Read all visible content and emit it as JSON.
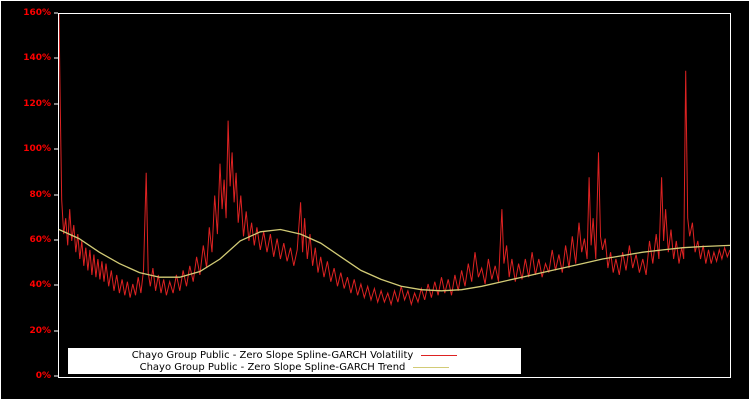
{
  "window": {
    "background": "#000000",
    "frame_color": "#ffffff"
  },
  "legend": {
    "items": [
      {
        "label": "Chayo Group Public - Zero Slope Spline-GARCH Volatility"
      },
      {
        "label": "Chayo Group Public - Zero Slope Spline-GARCH Trend"
      }
    ]
  },
  "chart_data": {
    "type": "line",
    "title": "",
    "xlabel": "",
    "ylabel": "",
    "ylim": [
      0,
      160
    ],
    "xlim": [
      0,
      1
    ],
    "grid": false,
    "legend_position": "bottom-left-inside",
    "axis_label_color": "#ff0000",
    "yticks": [
      "0%",
      "20%",
      "40%",
      "60%",
      "80%",
      "100%",
      "120%",
      "140%",
      "160%"
    ],
    "series": [
      {
        "name": "Chayo Group Public - Zero Slope Spline-GARCH Volatility",
        "color": "#dd2222",
        "width": 1,
        "points": [
          [
            0.0,
            160
          ],
          [
            0.002,
            118
          ],
          [
            0.004,
            78
          ],
          [
            0.007,
            63
          ],
          [
            0.01,
            70
          ],
          [
            0.013,
            58
          ],
          [
            0.016,
            74
          ],
          [
            0.019,
            60
          ],
          [
            0.022,
            67
          ],
          [
            0.025,
            55
          ],
          [
            0.028,
            63
          ],
          [
            0.031,
            52
          ],
          [
            0.034,
            60
          ],
          [
            0.037,
            49
          ],
          [
            0.04,
            57
          ],
          [
            0.043,
            47
          ],
          [
            0.046,
            56
          ],
          [
            0.049,
            45
          ],
          [
            0.052,
            54
          ],
          [
            0.055,
            44
          ],
          [
            0.058,
            52
          ],
          [
            0.061,
            43
          ],
          [
            0.064,
            51
          ],
          [
            0.067,
            42
          ],
          [
            0.07,
            50
          ],
          [
            0.074,
            40
          ],
          [
            0.078,
            47
          ],
          [
            0.082,
            38
          ],
          [
            0.086,
            45
          ],
          [
            0.09,
            37
          ],
          [
            0.094,
            43
          ],
          [
            0.098,
            36
          ],
          [
            0.102,
            42
          ],
          [
            0.106,
            35
          ],
          [
            0.11,
            41
          ],
          [
            0.114,
            36
          ],
          [
            0.118,
            44
          ],
          [
            0.122,
            37
          ],
          [
            0.126,
            47
          ],
          [
            0.13,
            90
          ],
          [
            0.133,
            46
          ],
          [
            0.136,
            40
          ],
          [
            0.14,
            48
          ],
          [
            0.144,
            38
          ],
          [
            0.148,
            45
          ],
          [
            0.152,
            37
          ],
          [
            0.156,
            43
          ],
          [
            0.16,
            36
          ],
          [
            0.165,
            42
          ],
          [
            0.17,
            37
          ],
          [
            0.175,
            45
          ],
          [
            0.18,
            38
          ],
          [
            0.185,
            47
          ],
          [
            0.19,
            40
          ],
          [
            0.195,
            49
          ],
          [
            0.2,
            42
          ],
          [
            0.205,
            53
          ],
          [
            0.21,
            45
          ],
          [
            0.215,
            58
          ],
          [
            0.22,
            48
          ],
          [
            0.224,
            66
          ],
          [
            0.228,
            55
          ],
          [
            0.232,
            80
          ],
          [
            0.236,
            63
          ],
          [
            0.24,
            94
          ],
          [
            0.243,
            74
          ],
          [
            0.246,
            87
          ],
          [
            0.249,
            70
          ],
          [
            0.252,
            113
          ],
          [
            0.255,
            84
          ],
          [
            0.258,
            99
          ],
          [
            0.261,
            77
          ],
          [
            0.264,
            90
          ],
          [
            0.267,
            68
          ],
          [
            0.271,
            80
          ],
          [
            0.275,
            62
          ],
          [
            0.279,
            73
          ],
          [
            0.283,
            60
          ],
          [
            0.287,
            68
          ],
          [
            0.291,
            58
          ],
          [
            0.295,
            66
          ],
          [
            0.3,
            56
          ],
          [
            0.305,
            64
          ],
          [
            0.31,
            55
          ],
          [
            0.315,
            63
          ],
          [
            0.32,
            53
          ],
          [
            0.325,
            61
          ],
          [
            0.33,
            52
          ],
          [
            0.335,
            59
          ],
          [
            0.34,
            51
          ],
          [
            0.345,
            57
          ],
          [
            0.35,
            49
          ],
          [
            0.355,
            56
          ],
          [
            0.36,
            77
          ],
          [
            0.363,
            55
          ],
          [
            0.366,
            70
          ],
          [
            0.37,
            52
          ],
          [
            0.374,
            63
          ],
          [
            0.378,
            49
          ],
          [
            0.382,
            57
          ],
          [
            0.386,
            46
          ],
          [
            0.39,
            53
          ],
          [
            0.395,
            44
          ],
          [
            0.4,
            51
          ],
          [
            0.405,
            42
          ],
          [
            0.41,
            48
          ],
          [
            0.415,
            40
          ],
          [
            0.42,
            46
          ],
          [
            0.425,
            39
          ],
          [
            0.43,
            44
          ],
          [
            0.435,
            37
          ],
          [
            0.44,
            43
          ],
          [
            0.445,
            36
          ],
          [
            0.45,
            41
          ],
          [
            0.455,
            35
          ],
          [
            0.46,
            40
          ],
          [
            0.465,
            34
          ],
          [
            0.47,
            39
          ],
          [
            0.475,
            33
          ],
          [
            0.48,
            38
          ],
          [
            0.485,
            33
          ],
          [
            0.49,
            37
          ],
          [
            0.495,
            32
          ],
          [
            0.5,
            38
          ],
          [
            0.505,
            33
          ],
          [
            0.51,
            40
          ],
          [
            0.515,
            34
          ],
          [
            0.52,
            38
          ],
          [
            0.525,
            32
          ],
          [
            0.53,
            37
          ],
          [
            0.535,
            33
          ],
          [
            0.54,
            39
          ],
          [
            0.545,
            34
          ],
          [
            0.55,
            41
          ],
          [
            0.555,
            35
          ],
          [
            0.56,
            42
          ],
          [
            0.565,
            36
          ],
          [
            0.57,
            44
          ],
          [
            0.575,
            37
          ],
          [
            0.58,
            43
          ],
          [
            0.585,
            36
          ],
          [
            0.59,
            45
          ],
          [
            0.595,
            38
          ],
          [
            0.6,
            47
          ],
          [
            0.605,
            40
          ],
          [
            0.61,
            50
          ],
          [
            0.615,
            42
          ],
          [
            0.62,
            55
          ],
          [
            0.625,
            44
          ],
          [
            0.63,
            48
          ],
          [
            0.635,
            41
          ],
          [
            0.64,
            52
          ],
          [
            0.645,
            43
          ],
          [
            0.65,
            49
          ],
          [
            0.655,
            42
          ],
          [
            0.66,
            74
          ],
          [
            0.663,
            50
          ],
          [
            0.667,
            58
          ],
          [
            0.671,
            44
          ],
          [
            0.675,
            52
          ],
          [
            0.68,
            42
          ],
          [
            0.685,
            50
          ],
          [
            0.69,
            43
          ],
          [
            0.695,
            52
          ],
          [
            0.7,
            44
          ],
          [
            0.705,
            55
          ],
          [
            0.71,
            45
          ],
          [
            0.715,
            52
          ],
          [
            0.72,
            44
          ],
          [
            0.725,
            50
          ],
          [
            0.73,
            46
          ],
          [
            0.735,
            56
          ],
          [
            0.74,
            47
          ],
          [
            0.745,
            54
          ],
          [
            0.75,
            46
          ],
          [
            0.755,
            58
          ],
          [
            0.76,
            48
          ],
          [
            0.765,
            62
          ],
          [
            0.77,
            50
          ],
          [
            0.775,
            68
          ],
          [
            0.779,
            55
          ],
          [
            0.783,
            61
          ],
          [
            0.787,
            52
          ],
          [
            0.79,
            88
          ],
          [
            0.793,
            58
          ],
          [
            0.796,
            70
          ],
          [
            0.8,
            52
          ],
          [
            0.804,
            99
          ],
          [
            0.807,
            62
          ],
          [
            0.81,
            56
          ],
          [
            0.814,
            61
          ],
          [
            0.818,
            48
          ],
          [
            0.822,
            55
          ],
          [
            0.826,
            46
          ],
          [
            0.83,
            52
          ],
          [
            0.835,
            45
          ],
          [
            0.84,
            55
          ],
          [
            0.845,
            47
          ],
          [
            0.85,
            58
          ],
          [
            0.855,
            48
          ],
          [
            0.86,
            54
          ],
          [
            0.865,
            46
          ],
          [
            0.87,
            52
          ],
          [
            0.875,
            45
          ],
          [
            0.88,
            60
          ],
          [
            0.885,
            50
          ],
          [
            0.89,
            63
          ],
          [
            0.894,
            52
          ],
          [
            0.898,
            88
          ],
          [
            0.901,
            60
          ],
          [
            0.904,
            74
          ],
          [
            0.908,
            55
          ],
          [
            0.912,
            65
          ],
          [
            0.916,
            52
          ],
          [
            0.92,
            60
          ],
          [
            0.924,
            50
          ],
          [
            0.928,
            57
          ],
          [
            0.931,
            52
          ],
          [
            0.934,
            135
          ],
          [
            0.937,
            70
          ],
          [
            0.94,
            62
          ],
          [
            0.944,
            68
          ],
          [
            0.948,
            55
          ],
          [
            0.952,
            60
          ],
          [
            0.956,
            52
          ],
          [
            0.96,
            58
          ],
          [
            0.964,
            50
          ],
          [
            0.968,
            56
          ],
          [
            0.972,
            50
          ],
          [
            0.976,
            55
          ],
          [
            0.98,
            51
          ],
          [
            0.984,
            56
          ],
          [
            0.988,
            52
          ],
          [
            0.992,
            57
          ],
          [
            0.996,
            53
          ],
          [
            1.0,
            56
          ]
        ]
      },
      {
        "name": "Chayo Group Public - Zero Slope Spline-GARCH Trend",
        "color": "#d2cb76",
        "width": 1.3,
        "points": [
          [
            0.0,
            65
          ],
          [
            0.03,
            61
          ],
          [
            0.06,
            55
          ],
          [
            0.09,
            50
          ],
          [
            0.12,
            46
          ],
          [
            0.15,
            44
          ],
          [
            0.18,
            44
          ],
          [
            0.21,
            46.5
          ],
          [
            0.24,
            52
          ],
          [
            0.27,
            60
          ],
          [
            0.3,
            64
          ],
          [
            0.33,
            65
          ],
          [
            0.36,
            63
          ],
          [
            0.39,
            59
          ],
          [
            0.42,
            53
          ],
          [
            0.45,
            47
          ],
          [
            0.48,
            43
          ],
          [
            0.51,
            40
          ],
          [
            0.54,
            38.5
          ],
          [
            0.57,
            38
          ],
          [
            0.6,
            38.5
          ],
          [
            0.63,
            40
          ],
          [
            0.66,
            42
          ],
          [
            0.69,
            44
          ],
          [
            0.72,
            46
          ],
          [
            0.75,
            48
          ],
          [
            0.78,
            50
          ],
          [
            0.81,
            52
          ],
          [
            0.84,
            53.5
          ],
          [
            0.87,
            55
          ],
          [
            0.9,
            56
          ],
          [
            0.93,
            57
          ],
          [
            0.96,
            57.5
          ],
          [
            1.0,
            58
          ]
        ]
      }
    ]
  }
}
